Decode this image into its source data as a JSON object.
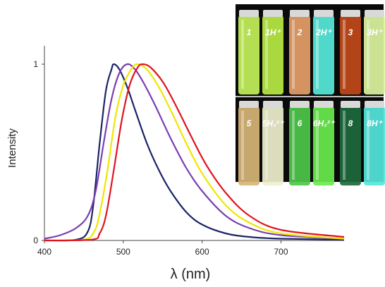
{
  "chart_data": {
    "type": "line",
    "title": "",
    "xlabel": "λ (nm)",
    "ylabel": "Intensity",
    "xlim": [
      400,
      780
    ],
    "ylim": [
      0,
      1
    ],
    "x_ticks": [
      "400",
      "500",
      "600",
      "700"
    ],
    "y_ticks": [
      "0",
      "1"
    ],
    "grid": false,
    "legend": "none",
    "series": [
      {
        "color": "#1a2466",
        "peak_nm": 488,
        "x": [
          400,
          440,
          455,
          462,
          470,
          478,
          485,
          488,
          495,
          505,
          515,
          530,
          545,
          560,
          580,
          600,
          630,
          660,
          700,
          780
        ],
        "y": [
          0,
          0.004,
          0.05,
          0.2,
          0.55,
          0.85,
          0.97,
          1.0,
          0.97,
          0.87,
          0.74,
          0.55,
          0.4,
          0.28,
          0.16,
          0.09,
          0.04,
          0.02,
          0.01,
          0.005
        ]
      },
      {
        "color": "#7a3fb0",
        "peak_nm": 505,
        "x": [
          400,
          420,
          440,
          455,
          465,
          475,
          485,
          495,
          505,
          515,
          525,
          540,
          560,
          580,
          600,
          630,
          660,
          700,
          780
        ],
        "y": [
          0.01,
          0.03,
          0.07,
          0.14,
          0.28,
          0.55,
          0.8,
          0.95,
          1.0,
          0.97,
          0.9,
          0.77,
          0.58,
          0.41,
          0.28,
          0.14,
          0.07,
          0.03,
          0.01
        ]
      },
      {
        "color": "#f0e600",
        "peak_nm": 518,
        "x": [
          400,
          450,
          463,
          470,
          480,
          490,
          500,
          510,
          518,
          530,
          545,
          560,
          580,
          600,
          630,
          660,
          700,
          780
        ],
        "y": [
          0,
          0.005,
          0.05,
          0.15,
          0.4,
          0.7,
          0.88,
          0.97,
          1.0,
          0.97,
          0.87,
          0.74,
          0.55,
          0.38,
          0.2,
          0.1,
          0.04,
          0.01
        ]
      },
      {
        "color": "#e0141e",
        "peak_nm": 525,
        "x": [
          400,
          460,
          470,
          478,
          488,
          498,
          508,
          518,
          525,
          535,
          550,
          565,
          585,
          605,
          630,
          660,
          700,
          780
        ],
        "y": [
          0,
          0.005,
          0.04,
          0.14,
          0.4,
          0.68,
          0.88,
          0.98,
          1.0,
          0.98,
          0.9,
          0.78,
          0.6,
          0.43,
          0.27,
          0.14,
          0.06,
          0.02
        ]
      }
    ]
  },
  "inset_photo": {
    "rows": [
      {
        "vials": [
          {
            "label": "1",
            "color": "#c4f25a"
          },
          {
            "label": "1H⁺",
            "color": "#b8ec44"
          },
          {
            "label": "2",
            "color": "#e6a069"
          },
          {
            "label": "2H⁺",
            "color": "#57ecdc"
          },
          {
            "label": "3",
            "color": "#c24a1a"
          },
          {
            "label": "3H⁺",
            "color": "#dcf5a0"
          }
        ]
      },
      {
        "vials": [
          {
            "label": "5",
            "color": "#d7b577"
          },
          {
            "label": "5H₂²⁺",
            "color": "#eef0cc"
          },
          {
            "label": "6",
            "color": "#4ec84a"
          },
          {
            "label": "6H₂²⁺",
            "color": "#6aeb4c"
          },
          {
            "label": "8",
            "color": "#1e6a3e"
          },
          {
            "label": "8H⁺",
            "color": "#54e6dc"
          }
        ]
      }
    ]
  }
}
